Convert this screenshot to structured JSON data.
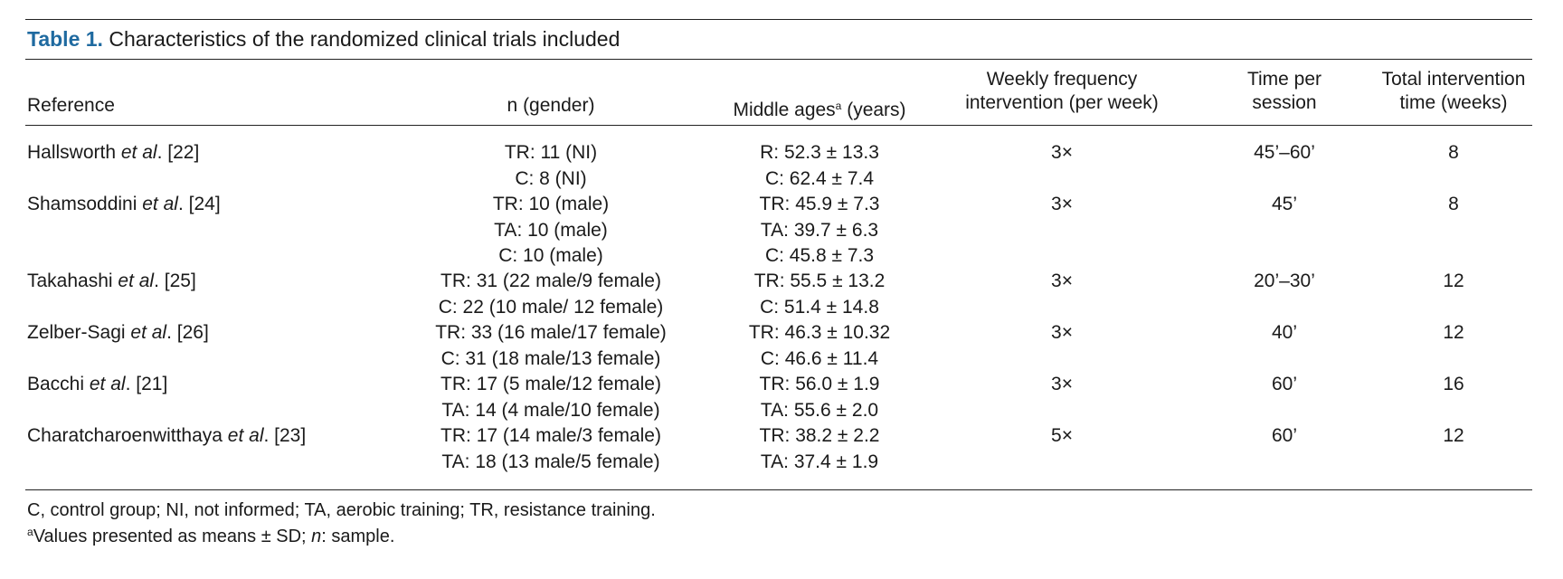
{
  "table": {
    "label": "Table 1.",
    "caption": "Characteristics of the randomized clinical trials included",
    "headers": {
      "reference": "Reference",
      "n_gender": "n (gender)",
      "middle_ages": "Middle ages",
      "middle_ages_sup": "a",
      "middle_ages_unit": " (years)",
      "weekly_freq_line1": "Weekly frequency",
      "weekly_freq_line2": "intervention (per week)",
      "time_session_line1": "Time per",
      "time_session_line2": "session",
      "total_time_line1": "Total intervention",
      "total_time_line2": "time (weeks)"
    },
    "rows": [
      {
        "ref_author": "Hallsworth ",
        "ref_etal": "et al",
        "ref_cite": ". [22]",
        "n": [
          "TR: 11 (NI)",
          "C: 8 (NI)"
        ],
        "ages": [
          "R: 52.3 ± 13.3",
          "C: 62.4 ± 7.4"
        ],
        "freq": "3×",
        "time": "45’–60’",
        "total": "8"
      },
      {
        "ref_author": "Shamsoddini ",
        "ref_etal": "et al",
        "ref_cite": ". [24]",
        "n": [
          "TR: 10 (male)",
          "TA: 10 (male)",
          "C: 10 (male)"
        ],
        "ages": [
          "TR: 45.9 ± 7.3",
          "TA: 39.7 ± 6.3",
          "C: 45.8 ± 7.3"
        ],
        "freq": "3×",
        "time": "45’",
        "total": "8"
      },
      {
        "ref_author": "Takahashi ",
        "ref_etal": "et al",
        "ref_cite": ". [25]",
        "n": [
          "TR: 31 (22 male/9 female)",
          "C: 22 (10 male/ 12 female)"
        ],
        "ages": [
          "TR: 55.5 ± 13.2",
          "C: 51.4 ± 14.8"
        ],
        "freq": "3×",
        "time": "20’–30’",
        "total": "12"
      },
      {
        "ref_author": "Zelber-Sagi ",
        "ref_etal": "et al",
        "ref_cite": ". [26]",
        "n": [
          "TR: 33 (16 male/17 female)",
          "C: 31 (18 male/13 female)"
        ],
        "ages": [
          "TR: 46.3 ± 10.32",
          "C: 46.6 ± 11.4"
        ],
        "freq": "3×",
        "time": "40’",
        "total": "12"
      },
      {
        "ref_author": "Bacchi ",
        "ref_etal": "et al",
        "ref_cite": ". [21]",
        "n": [
          "TR: 17 (5 male/12 female)",
          "TA: 14 (4 male/10 female)"
        ],
        "ages": [
          "TR: 56.0 ± 1.9",
          "TA: 55.6 ± 2.0"
        ],
        "freq": "3×",
        "time": "60’",
        "total": "16"
      },
      {
        "ref_author": "Charatcharoenwitthaya ",
        "ref_etal": "et al",
        "ref_cite": ". [23]",
        "n": [
          "TR: 17 (14 male/3 female)",
          "TA: 18 (13 male/5 female)"
        ],
        "ages": [
          "TR: 38.2 ± 2.2",
          "TA: 37.4 ± 1.9"
        ],
        "freq": "5×",
        "time": "60’",
        "total": "12"
      }
    ],
    "footnotes": {
      "abbreviations": "C, control group; NI, not informed; TA, aerobic training; TR, resistance training.",
      "values_sup": "a",
      "values_text1": "Values presented as means ± SD; ",
      "values_n": "n",
      "values_text2": ": sample."
    }
  }
}
